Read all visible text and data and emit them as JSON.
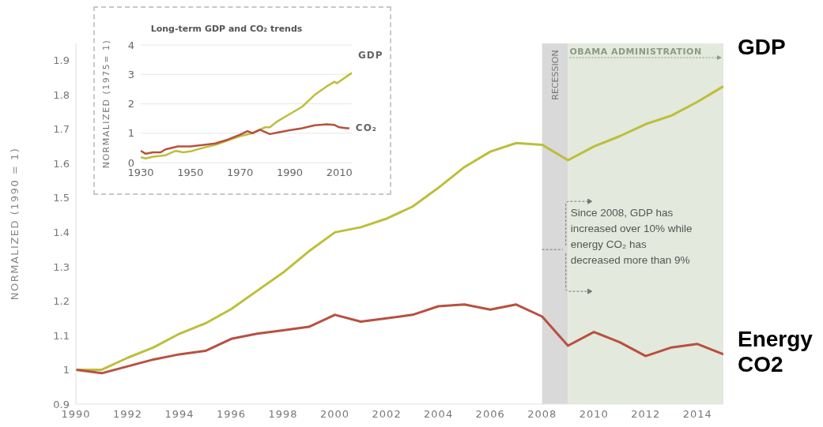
{
  "chart_data": [
    {
      "type": "line",
      "ylabel": "NORMALIZED (1990 = 1)",
      "x": [
        1990,
        1991,
        1992,
        1993,
        1994,
        1995,
        1996,
        1997,
        1998,
        1999,
        2000,
        2001,
        2002,
        2003,
        2004,
        2005,
        2006,
        2007,
        2008,
        2009,
        2010,
        2011,
        2012,
        2013,
        2014,
        2015
      ],
      "series": [
        {
          "name": "GDP",
          "color": "#bcbf3a",
          "values": [
            1.0,
            1.0,
            1.035,
            1.065,
            1.105,
            1.135,
            1.177,
            1.23,
            1.283,
            1.345,
            1.4,
            1.415,
            1.44,
            1.475,
            1.53,
            1.59,
            1.635,
            1.66,
            1.655,
            1.61,
            1.65,
            1.68,
            1.715,
            1.74,
            1.78,
            1.825
          ]
        },
        {
          "name": "Energy CO2",
          "color": "#b85040",
          "values": [
            1.0,
            0.99,
            1.01,
            1.03,
            1.045,
            1.055,
            1.09,
            1.105,
            1.115,
            1.125,
            1.16,
            1.14,
            1.15,
            1.16,
            1.185,
            1.19,
            1.175,
            1.19,
            1.155,
            1.07,
            1.11,
            1.08,
            1.04,
            1.065,
            1.075,
            1.045
          ]
        }
      ],
      "xlim": [
        1990,
        2015
      ],
      "xticks": [
        1990,
        1992,
        1994,
        1996,
        1998,
        2000,
        2002,
        2004,
        2006,
        2008,
        2010,
        2012,
        2014
      ],
      "ylim": [
        0.9,
        1.95
      ],
      "yticks": [
        0.9,
        1,
        1.1,
        1.2,
        1.3,
        1.4,
        1.5,
        1.6,
        1.7,
        1.8,
        1.9
      ],
      "bands": [
        {
          "axis": "x",
          "from": 2008,
          "to": 2009,
          "label": "RECESSION",
          "color": "#d9d9d9"
        },
        {
          "axis": "x",
          "from": 2009,
          "to": 2015,
          "label": "OBAMA ADMINISTRATION",
          "color": "#e3e9dc"
        }
      ],
      "annotations": [
        {
          "text": "Since 2008, GDP has increased over 10% while energy CO₂ has decreased more than 9%",
          "x": 2008,
          "y": 1.35
        }
      ],
      "grid": false,
      "marker": "none",
      "line_style": "solid"
    },
    {
      "type": "line",
      "title": "Long-term GDP and CO₂ trends",
      "ylabel": "NORMALIZED (1975= 1)",
      "series": [
        {
          "name": "GDP",
          "color": "#bcbf3a",
          "x": [
            1930,
            1932,
            1935,
            1940,
            1944,
            1947,
            1950,
            1955,
            1960,
            1965,
            1970,
            1975,
            1980,
            1982,
            1985,
            1990,
            1995,
            2000,
            2005,
            2008,
            2009,
            2015
          ],
          "values": [
            0.18,
            0.14,
            0.2,
            0.25,
            0.4,
            0.35,
            0.38,
            0.5,
            0.6,
            0.75,
            0.9,
            1.0,
            1.2,
            1.2,
            1.4,
            1.65,
            1.9,
            2.3,
            2.6,
            2.75,
            2.7,
            3.05
          ]
        },
        {
          "name": "CO₂",
          "color": "#b85040",
          "x": [
            1930,
            1932,
            1935,
            1938,
            1940,
            1945,
            1950,
            1955,
            1960,
            1965,
            1970,
            1973,
            1975,
            1978,
            1982,
            1985,
            1990,
            1995,
            2000,
            2005,
            2008,
            2010,
            2013,
            2014
          ],
          "values": [
            0.4,
            0.3,
            0.35,
            0.35,
            0.45,
            0.55,
            0.55,
            0.6,
            0.65,
            0.78,
            0.95,
            1.07,
            1.0,
            1.12,
            0.97,
            1.02,
            1.1,
            1.17,
            1.27,
            1.3,
            1.28,
            1.2,
            1.17,
            1.17
          ]
        }
      ],
      "xlim": [
        1930,
        2015
      ],
      "xticks": [
        1930,
        1950,
        1970,
        1990,
        2010
      ],
      "ylim": [
        0,
        4
      ],
      "yticks": [
        0,
        1,
        2,
        3,
        4
      ],
      "grid": "y",
      "marker": "none",
      "line_style": "solid"
    }
  ]
}
